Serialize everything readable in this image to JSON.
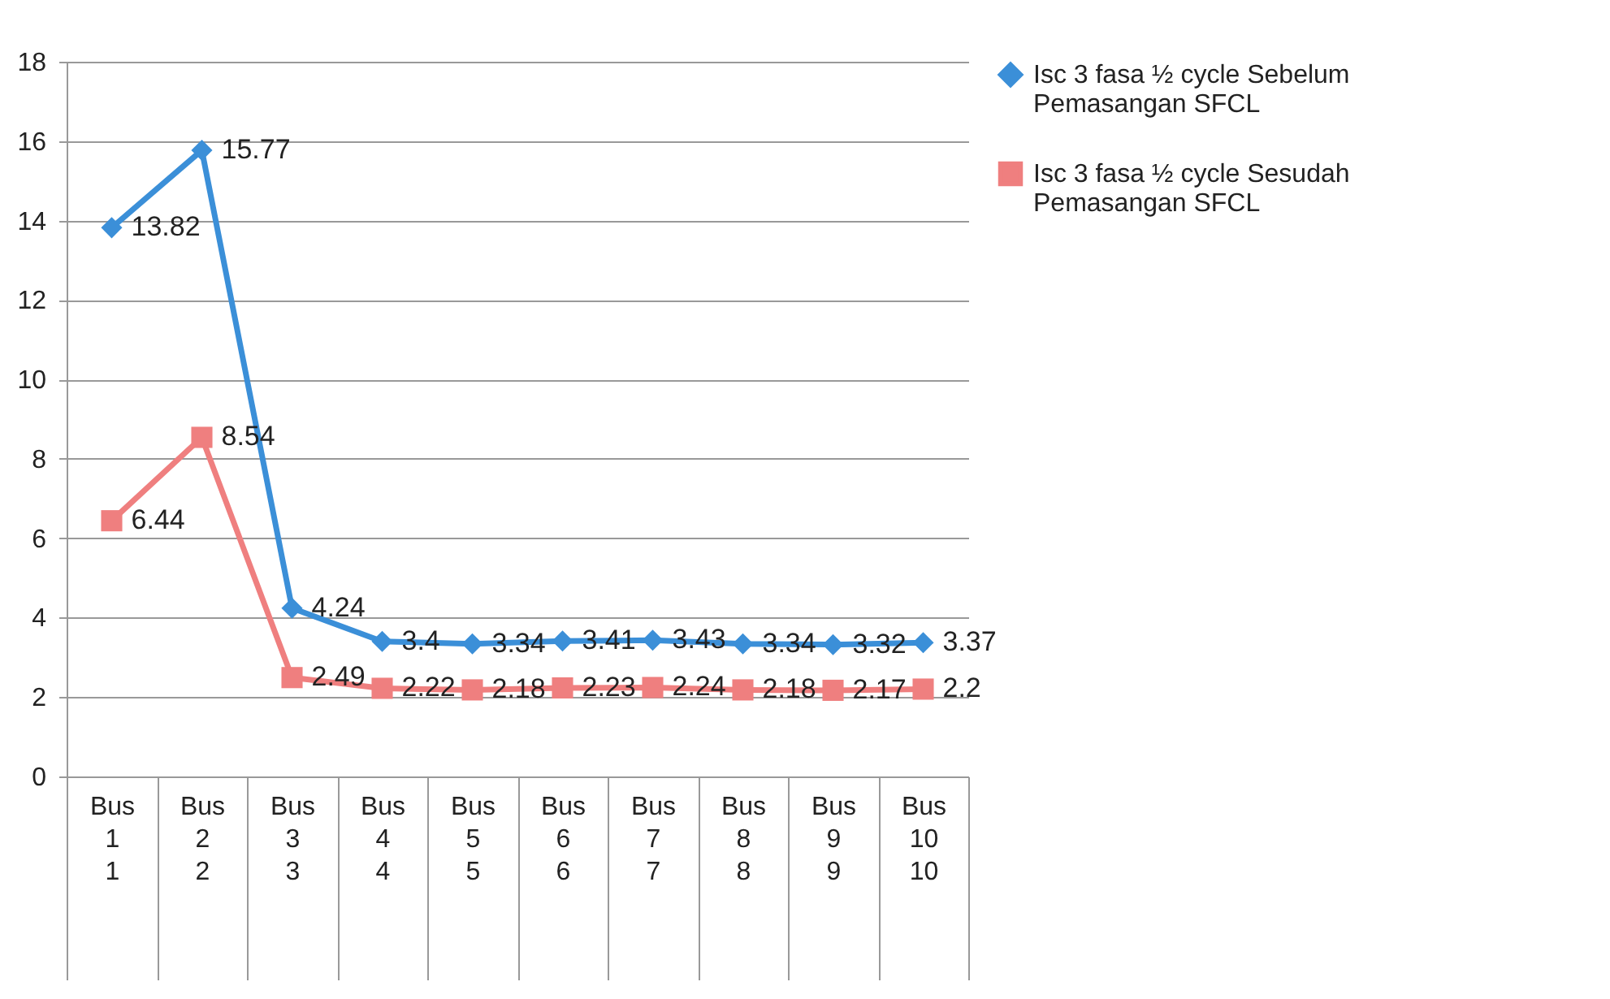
{
  "chart_data": {
    "type": "line",
    "categories": [
      "Bus 1\n1",
      "Bus 2\n2",
      "Bus 3\n3",
      "Bus 4\n4",
      "Bus 5\n5",
      "Bus 6\n6",
      "Bus 7\n7",
      "Bus 8\n8",
      "Bus 9\n9",
      "Bus 10\n10"
    ],
    "series": [
      {
        "name": "Isc 3 fasa ½ cycle Sebelum Pemasangan SFCL",
        "color": "#3b8fd8",
        "marker": "diamond",
        "values": [
          13.82,
          15.77,
          4.24,
          3.4,
          3.34,
          3.41,
          3.43,
          3.34,
          3.32,
          3.37
        ]
      },
      {
        "name": "Isc 3 fasa ½ cycle Sesudah Pemasangan SFCL",
        "color": "#ef7f7f",
        "marker": "square",
        "values": [
          6.44,
          8.54,
          2.49,
          2.22,
          2.18,
          2.23,
          2.24,
          2.18,
          2.17,
          2.2
        ]
      }
    ],
    "ylim": [
      0,
      18
    ],
    "yticks": [
      0,
      2,
      4,
      6,
      8,
      10,
      12,
      14,
      16,
      18
    ],
    "grid": "y",
    "legend": "right",
    "data_labels": true
  }
}
